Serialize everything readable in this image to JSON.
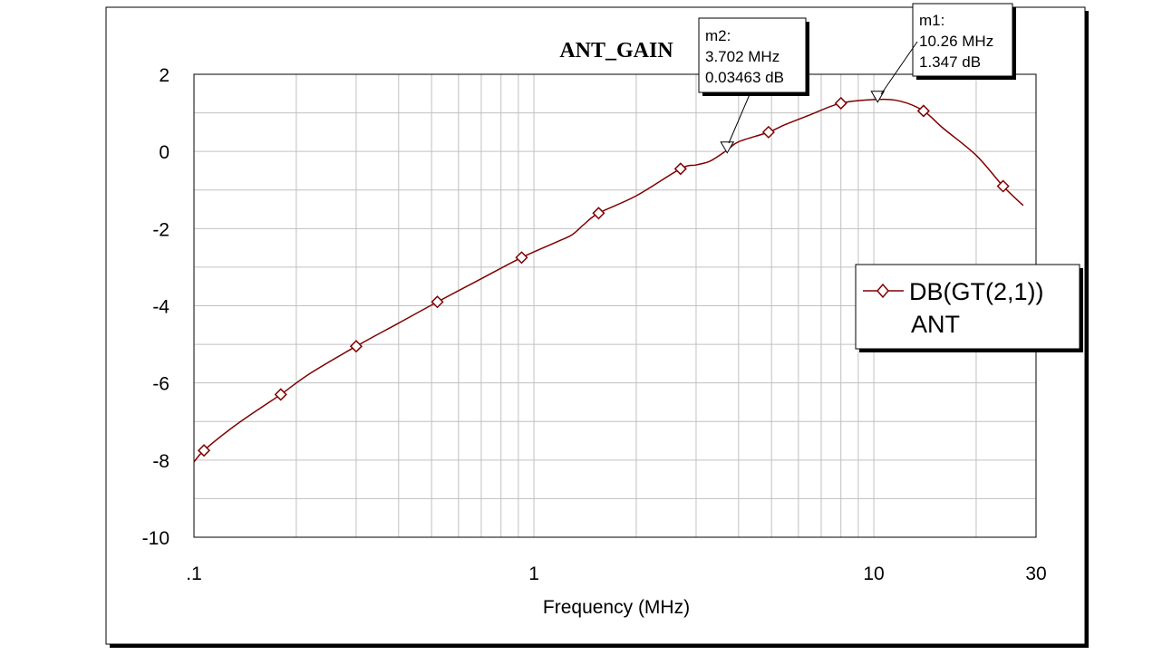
{
  "chart_data": {
    "type": "line",
    "title": "ANT_GAIN",
    "xlabel": "Frequency (MHz)",
    "ylabel": "",
    "xscale": "log",
    "xlim": [
      0.1,
      30
    ],
    "ylim": [
      -10,
      2
    ],
    "x_tick_labels": [
      {
        "value": 0.1,
        "label": ".1"
      },
      {
        "value": 1,
        "label": "1"
      },
      {
        "value": 10,
        "label": "10"
      },
      {
        "value": 30,
        "label": "30"
      }
    ],
    "y_tick_labels": [
      {
        "value": 2,
        "label": "2"
      },
      {
        "value": 0,
        "label": "0"
      },
      {
        "value": -2,
        "label": "-2"
      },
      {
        "value": -4,
        "label": "-4"
      },
      {
        "value": -6,
        "label": "-6"
      },
      {
        "value": -8,
        "label": "-8"
      },
      {
        "value": -10,
        "label": "-10"
      }
    ],
    "grid": true,
    "legend_position": "right",
    "series": [
      {
        "name": "DB(GT(2,1))",
        "subtitle": "ANT",
        "color": "#800000",
        "marker": "diamond",
        "x": [
          0.1,
          0.107,
          0.13,
          0.16,
          0.18,
          0.22,
          0.3,
          0.4,
          0.52,
          0.7,
          0.92,
          1.2,
          1.3,
          1.4,
          1.55,
          2.0,
          2.7,
          3.0,
          3.3,
          3.702,
          4.0,
          4.9,
          5.5,
          6.5,
          8.0,
          10.26,
          12.0,
          14.0,
          16.0,
          20.0,
          24.0,
          27.5
        ],
        "y": [
          -8.05,
          -7.75,
          -7.15,
          -6.6,
          -6.3,
          -5.75,
          -5.05,
          -4.45,
          -3.9,
          -3.3,
          -2.75,
          -2.3,
          -2.15,
          -1.9,
          -1.6,
          -1.15,
          -0.45,
          -0.35,
          -0.25,
          0.03463,
          0.25,
          0.5,
          0.7,
          0.95,
          1.25,
          1.347,
          1.3,
          1.05,
          0.6,
          -0.1,
          -0.9,
          -1.4
        ],
        "marker_x": [
          0.107,
          0.18,
          0.3,
          0.52,
          0.92,
          1.55,
          2.7,
          4.9,
          8.0,
          14.0,
          24.0
        ]
      }
    ],
    "markers": [
      {
        "id": "m2",
        "label": "m2:",
        "x": 3.702,
        "y": 0.03463,
        "freq_text": "3.702 MHz",
        "value_text": "0.03463 dB"
      },
      {
        "id": "m1",
        "label": "m1:",
        "x": 10.26,
        "y": 1.347,
        "freq_text": "10.26 MHz",
        "value_text": "1.347 dB"
      }
    ]
  }
}
